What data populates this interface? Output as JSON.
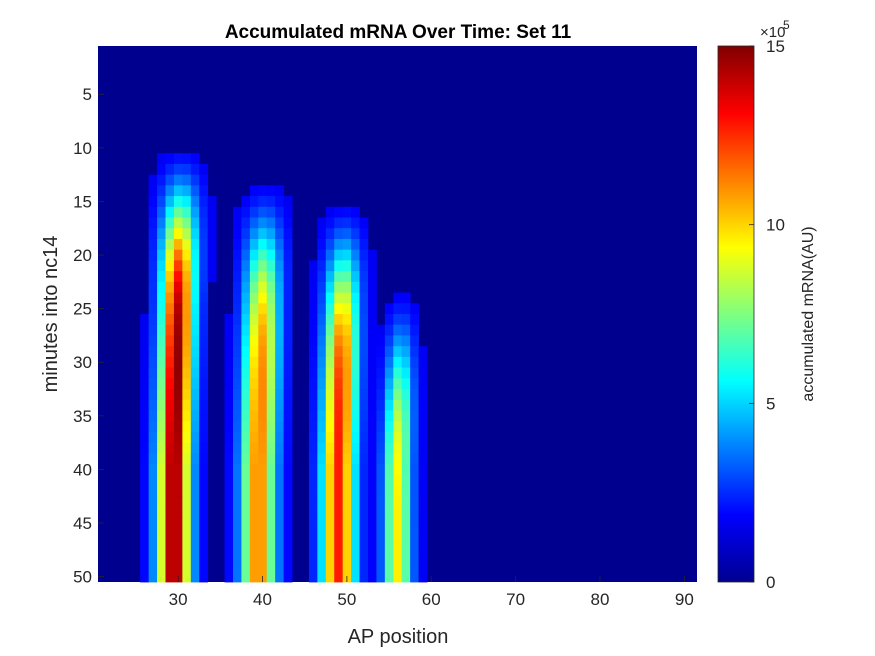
{
  "chart_data": {
    "type": "heatmap",
    "title": "Accumulated mRNA Over Time: Set 11",
    "xlabel": "AP position",
    "ylabel": "minutes into nc14",
    "x_ticks": [
      30,
      40,
      50,
      60,
      70,
      80,
      90
    ],
    "y_ticks": [
      5,
      10,
      15,
      20,
      25,
      30,
      35,
      40,
      45,
      50
    ],
    "xlim": [
      20.5,
      91.5
    ],
    "ylim": [
      0.5,
      50.5
    ],
    "y_reversed": true,
    "colormap": "jet",
    "colorbar": {
      "label": "accumulated mRNA(AU)",
      "ticks": [
        "0",
        "5",
        "10",
        "15"
      ],
      "exponent_base": "×10",
      "exponent": "5",
      "range": [
        0,
        1500000
      ]
    },
    "stripes": [
      {
        "center_ap": 29.5,
        "half_width": 1.8,
        "onset_min": 9,
        "peak_value": 1500000
      },
      {
        "center_ap": 39.5,
        "half_width": 1.9,
        "onset_min": 12,
        "peak_value": 1100000
      },
      {
        "center_ap": 49.0,
        "half_width": 1.8,
        "onset_min": 14,
        "peak_value": 1250000
      },
      {
        "center_ap": 56.0,
        "half_width": 1.5,
        "onset_min": 22,
        "peak_value": 900000
      }
    ]
  }
}
